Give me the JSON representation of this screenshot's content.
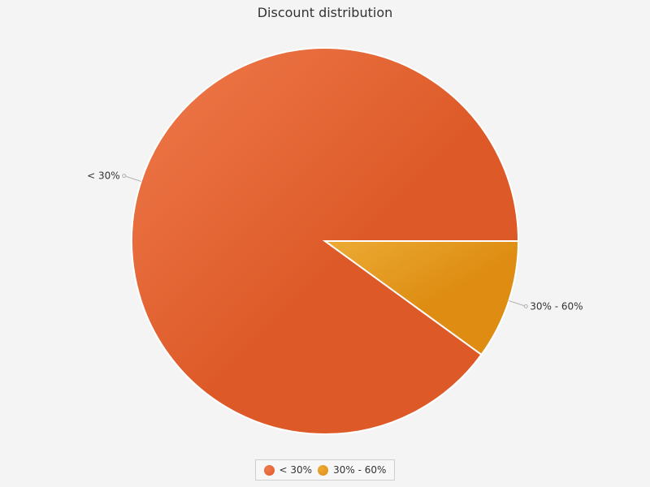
{
  "chart_data": {
    "type": "pie",
    "title": "Discount distribution",
    "slices": [
      {
        "label": "< 30%",
        "value": 90,
        "color": "#dd5a28",
        "highlight": "#f07a4c"
      },
      {
        "label": "30% - 60%",
        "value": 10,
        "color": "#de8d12",
        "highlight": "#ecab35"
      }
    ],
    "legend_position": "bottom"
  }
}
